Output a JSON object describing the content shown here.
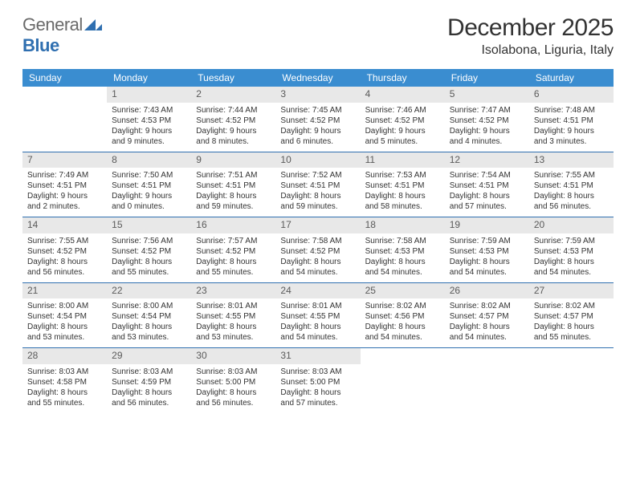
{
  "logo": {
    "general": "General",
    "blue": "Blue"
  },
  "title": "December 2025",
  "location": "Isolabona, Liguria, Italy",
  "colors": {
    "header_bg": "#3a8dd0",
    "week_border": "#2f6fb0",
    "daynum_bg": "#e8e8e8",
    "text": "#333333"
  },
  "weekdays": [
    "Sunday",
    "Monday",
    "Tuesday",
    "Wednesday",
    "Thursday",
    "Friday",
    "Saturday"
  ],
  "weeks": [
    [
      {
        "n": "",
        "sunrise": "",
        "sunset": "",
        "daylight1": "",
        "daylight2": ""
      },
      {
        "n": "1",
        "sunrise": "Sunrise: 7:43 AM",
        "sunset": "Sunset: 4:53 PM",
        "daylight1": "Daylight: 9 hours",
        "daylight2": "and 9 minutes."
      },
      {
        "n": "2",
        "sunrise": "Sunrise: 7:44 AM",
        "sunset": "Sunset: 4:52 PM",
        "daylight1": "Daylight: 9 hours",
        "daylight2": "and 8 minutes."
      },
      {
        "n": "3",
        "sunrise": "Sunrise: 7:45 AM",
        "sunset": "Sunset: 4:52 PM",
        "daylight1": "Daylight: 9 hours",
        "daylight2": "and 6 minutes."
      },
      {
        "n": "4",
        "sunrise": "Sunrise: 7:46 AM",
        "sunset": "Sunset: 4:52 PM",
        "daylight1": "Daylight: 9 hours",
        "daylight2": "and 5 minutes."
      },
      {
        "n": "5",
        "sunrise": "Sunrise: 7:47 AM",
        "sunset": "Sunset: 4:52 PM",
        "daylight1": "Daylight: 9 hours",
        "daylight2": "and 4 minutes."
      },
      {
        "n": "6",
        "sunrise": "Sunrise: 7:48 AM",
        "sunset": "Sunset: 4:51 PM",
        "daylight1": "Daylight: 9 hours",
        "daylight2": "and 3 minutes."
      }
    ],
    [
      {
        "n": "7",
        "sunrise": "Sunrise: 7:49 AM",
        "sunset": "Sunset: 4:51 PM",
        "daylight1": "Daylight: 9 hours",
        "daylight2": "and 2 minutes."
      },
      {
        "n": "8",
        "sunrise": "Sunrise: 7:50 AM",
        "sunset": "Sunset: 4:51 PM",
        "daylight1": "Daylight: 9 hours",
        "daylight2": "and 0 minutes."
      },
      {
        "n": "9",
        "sunrise": "Sunrise: 7:51 AM",
        "sunset": "Sunset: 4:51 PM",
        "daylight1": "Daylight: 8 hours",
        "daylight2": "and 59 minutes."
      },
      {
        "n": "10",
        "sunrise": "Sunrise: 7:52 AM",
        "sunset": "Sunset: 4:51 PM",
        "daylight1": "Daylight: 8 hours",
        "daylight2": "and 59 minutes."
      },
      {
        "n": "11",
        "sunrise": "Sunrise: 7:53 AM",
        "sunset": "Sunset: 4:51 PM",
        "daylight1": "Daylight: 8 hours",
        "daylight2": "and 58 minutes."
      },
      {
        "n": "12",
        "sunrise": "Sunrise: 7:54 AM",
        "sunset": "Sunset: 4:51 PM",
        "daylight1": "Daylight: 8 hours",
        "daylight2": "and 57 minutes."
      },
      {
        "n": "13",
        "sunrise": "Sunrise: 7:55 AM",
        "sunset": "Sunset: 4:51 PM",
        "daylight1": "Daylight: 8 hours",
        "daylight2": "and 56 minutes."
      }
    ],
    [
      {
        "n": "14",
        "sunrise": "Sunrise: 7:55 AM",
        "sunset": "Sunset: 4:52 PM",
        "daylight1": "Daylight: 8 hours",
        "daylight2": "and 56 minutes."
      },
      {
        "n": "15",
        "sunrise": "Sunrise: 7:56 AM",
        "sunset": "Sunset: 4:52 PM",
        "daylight1": "Daylight: 8 hours",
        "daylight2": "and 55 minutes."
      },
      {
        "n": "16",
        "sunrise": "Sunrise: 7:57 AM",
        "sunset": "Sunset: 4:52 PM",
        "daylight1": "Daylight: 8 hours",
        "daylight2": "and 55 minutes."
      },
      {
        "n": "17",
        "sunrise": "Sunrise: 7:58 AM",
        "sunset": "Sunset: 4:52 PM",
        "daylight1": "Daylight: 8 hours",
        "daylight2": "and 54 minutes."
      },
      {
        "n": "18",
        "sunrise": "Sunrise: 7:58 AM",
        "sunset": "Sunset: 4:53 PM",
        "daylight1": "Daylight: 8 hours",
        "daylight2": "and 54 minutes."
      },
      {
        "n": "19",
        "sunrise": "Sunrise: 7:59 AM",
        "sunset": "Sunset: 4:53 PM",
        "daylight1": "Daylight: 8 hours",
        "daylight2": "and 54 minutes."
      },
      {
        "n": "20",
        "sunrise": "Sunrise: 7:59 AM",
        "sunset": "Sunset: 4:53 PM",
        "daylight1": "Daylight: 8 hours",
        "daylight2": "and 54 minutes."
      }
    ],
    [
      {
        "n": "21",
        "sunrise": "Sunrise: 8:00 AM",
        "sunset": "Sunset: 4:54 PM",
        "daylight1": "Daylight: 8 hours",
        "daylight2": "and 53 minutes."
      },
      {
        "n": "22",
        "sunrise": "Sunrise: 8:00 AM",
        "sunset": "Sunset: 4:54 PM",
        "daylight1": "Daylight: 8 hours",
        "daylight2": "and 53 minutes."
      },
      {
        "n": "23",
        "sunrise": "Sunrise: 8:01 AM",
        "sunset": "Sunset: 4:55 PM",
        "daylight1": "Daylight: 8 hours",
        "daylight2": "and 53 minutes."
      },
      {
        "n": "24",
        "sunrise": "Sunrise: 8:01 AM",
        "sunset": "Sunset: 4:55 PM",
        "daylight1": "Daylight: 8 hours",
        "daylight2": "and 54 minutes."
      },
      {
        "n": "25",
        "sunrise": "Sunrise: 8:02 AM",
        "sunset": "Sunset: 4:56 PM",
        "daylight1": "Daylight: 8 hours",
        "daylight2": "and 54 minutes."
      },
      {
        "n": "26",
        "sunrise": "Sunrise: 8:02 AM",
        "sunset": "Sunset: 4:57 PM",
        "daylight1": "Daylight: 8 hours",
        "daylight2": "and 54 minutes."
      },
      {
        "n": "27",
        "sunrise": "Sunrise: 8:02 AM",
        "sunset": "Sunset: 4:57 PM",
        "daylight1": "Daylight: 8 hours",
        "daylight2": "and 55 minutes."
      }
    ],
    [
      {
        "n": "28",
        "sunrise": "Sunrise: 8:03 AM",
        "sunset": "Sunset: 4:58 PM",
        "daylight1": "Daylight: 8 hours",
        "daylight2": "and 55 minutes."
      },
      {
        "n": "29",
        "sunrise": "Sunrise: 8:03 AM",
        "sunset": "Sunset: 4:59 PM",
        "daylight1": "Daylight: 8 hours",
        "daylight2": "and 56 minutes."
      },
      {
        "n": "30",
        "sunrise": "Sunrise: 8:03 AM",
        "sunset": "Sunset: 5:00 PM",
        "daylight1": "Daylight: 8 hours",
        "daylight2": "and 56 minutes."
      },
      {
        "n": "31",
        "sunrise": "Sunrise: 8:03 AM",
        "sunset": "Sunset: 5:00 PM",
        "daylight1": "Daylight: 8 hours",
        "daylight2": "and 57 minutes."
      },
      {
        "n": "",
        "sunrise": "",
        "sunset": "",
        "daylight1": "",
        "daylight2": ""
      },
      {
        "n": "",
        "sunrise": "",
        "sunset": "",
        "daylight1": "",
        "daylight2": ""
      },
      {
        "n": "",
        "sunrise": "",
        "sunset": "",
        "daylight1": "",
        "daylight2": ""
      }
    ]
  ]
}
